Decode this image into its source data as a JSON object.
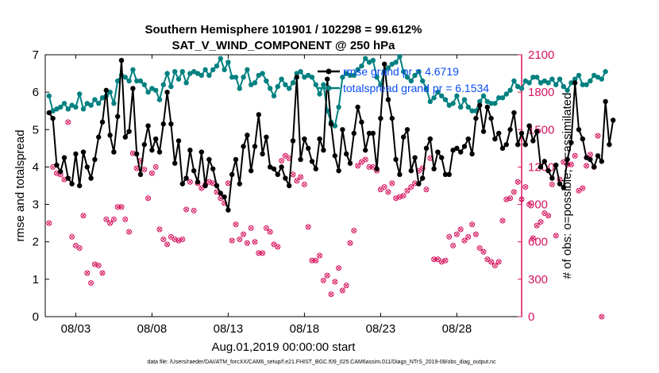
{
  "colors": {
    "rmse": "#000000",
    "spread": "#008080",
    "obs": "#d6145f",
    "legend_text": "#0a4cf5"
  },
  "chart_data": {
    "type": "line",
    "title": "Southern Hemisphere 101901 / 102298 = 99.612%",
    "subtitle": "SAT_V_WIND_COMPONENT @ 250 hPa",
    "xlabel": "Aug.01,2019 00:00:00 start",
    "ylabel": "rmse and totalspread",
    "ylabel_right": "# of obs: o=possible; ×=assimilated",
    "footer": "data file: /Users/raeder/DAI/ATM_forcXX/CAM6_setup/f.e21.FHIST_BGC.f09_025.CAM6assim.011/Diags_NTrS_2019-08/obs_diag_output.nc",
    "x_tick_labels": [
      "08/03",
      "08/08",
      "08/13",
      "08/18",
      "08/23",
      "08/28"
    ],
    "x_tick_days": [
      3,
      8,
      13,
      18,
      23,
      28
    ],
    "xlim": [
      1,
      32.25
    ],
    "ylim": [
      0,
      7
    ],
    "y_ticks": [
      "0",
      "1",
      "2",
      "3",
      "4",
      "5",
      "6",
      "7"
    ],
    "ylim_right": [
      0,
      2100
    ],
    "y_ticks_right": [
      "0",
      "300",
      "600",
      "900",
      "1200",
      "1500",
      "1800",
      "2100"
    ],
    "legend": [
      "rmse grand pr = 4.6719",
      "totalspread grand pr = 6.1534"
    ],
    "series": [
      {
        "name": "rmse",
        "values": [
          5.45,
          5.3,
          4.05,
          3.88,
          4.25,
          3.7,
          3.55,
          4.35,
          3.5,
          4.4,
          4.0,
          3.7,
          4.2,
          4.8,
          5.2,
          6.05,
          4.85,
          4.4,
          5.35,
          6.85,
          4.8,
          4.95,
          6.1,
          4.35,
          3.8,
          4.6,
          5.1,
          4.45,
          4.75,
          4.4,
          5.15,
          6.0,
          5.15,
          4.1,
          4.7,
          3.55,
          3.7,
          4.45,
          3.9,
          3.6,
          4.4,
          3.5,
          4.2,
          3.95,
          3.5,
          3.3,
          3.2,
          2.85,
          3.8,
          4.2,
          3.55,
          4.55,
          4.85,
          3.9,
          4.55,
          5.4,
          4.35,
          4.8,
          4.0,
          3.95,
          3.8,
          4.0,
          3.7,
          3.5,
          4.7,
          6.4,
          4.2,
          4.75,
          4.5,
          4.15,
          3.95,
          4.75,
          4.45,
          6.35,
          5.15,
          4.3,
          3.9,
          5.0,
          4.35,
          4.1,
          4.9,
          5.6,
          5.2,
          4.45,
          4.9,
          4.9,
          3.95,
          5.3,
          6.75,
          5.8,
          5.3,
          4.2,
          3.8,
          4.8,
          5.0,
          3.9,
          4.25,
          3.55,
          3.7,
          4.5,
          4.75,
          3.95,
          4.4,
          4.25,
          3.8,
          3.8,
          4.45,
          4.5,
          4.4,
          4.55,
          4.75,
          4.35,
          5.3,
          5.65,
          4.95,
          5.6,
          5.3,
          4.75,
          4.9,
          4.5,
          4.6,
          5.0,
          5.45,
          4.6,
          4.9,
          4.6,
          5.1,
          4.7,
          4.95,
          4.0,
          4.15,
          3.9,
          3.7,
          4.05,
          3.55,
          3.45,
          4.2,
          4.65,
          6.25,
          5.0,
          4.75,
          4.25,
          4.2,
          4.0,
          4.3,
          4.15,
          5.75,
          4.6,
          5.25
        ]
      },
      {
        "name": "totalspread",
        "values": [
          5.9,
          5.5,
          5.55,
          5.6,
          5.7,
          5.55,
          5.65,
          5.6,
          5.95,
          5.55,
          5.7,
          5.65,
          5.8,
          5.7,
          5.85,
          5.9,
          6.0,
          5.7,
          6.3,
          6.45,
          6.4,
          6.3,
          6.6,
          6.3,
          6.3,
          6.2,
          6.0,
          6.1,
          6.05,
          5.8,
          6.2,
          6.5,
          6.15,
          6.55,
          6.35,
          6.55,
          6.25,
          6.5,
          6.55,
          6.5,
          6.45,
          6.6,
          6.45,
          6.6,
          6.7,
          6.9,
          6.6,
          6.8,
          6.4,
          6.4,
          6.1,
          6.4,
          6.6,
          6.2,
          6.25,
          6.45,
          6.5,
          6.3,
          6.1,
          5.9,
          6.15,
          6.35,
          6.2,
          6.1,
          6.25,
          6.5,
          6.55,
          6.4,
          6.45,
          6.4,
          6.2,
          5.95,
          6.2,
          5.5,
          5.2,
          5.1,
          5.6,
          6.4,
          6.5,
          6.45,
          6.45,
          6.6,
          6.7,
          6.9,
          6.8,
          6.85,
          6.4,
          6.2,
          6.55,
          6.65,
          6.75,
          6.8,
          6.95,
          6.55,
          6.4,
          6.3,
          6.45,
          6.55,
          6.3,
          6.1,
          5.75,
          5.85,
          6.0,
          5.9,
          5.8,
          5.65,
          5.7,
          5.9,
          5.6,
          5.8,
          5.6,
          5.5,
          5.5,
          5.75,
          5.9,
          5.75,
          5.7,
          5.7,
          5.85,
          5.85,
          5.95,
          6.05,
          6.3,
          6.15,
          6.1,
          6.3,
          6.25,
          6.4,
          6.4,
          6.25,
          6.3,
          6.25,
          6.35,
          6.2,
          6.35,
          6.15,
          6.05,
          6.25,
          6.35,
          6.45,
          6.2,
          6.2,
          6.3,
          6.45,
          6.4,
          6.35,
          6.55
        ]
      },
      {
        "name": "obs_possible",
        "values": [
          750,
          1200,
          1150,
          1140,
          1100,
          1560,
          640,
          570,
          550,
          810,
          350,
          270,
          420,
          410,
          350,
          780,
          750,
          780,
          880,
          880,
          780,
          680,
          1310,
          1190,
          1250,
          1180,
          950,
          1150,
          1200,
          700,
          620,
          580,
          640,
          620,
          610,
          620,
          860,
          1080,
          850,
          1070,
          1030,
          1060,
          1080,
          1070,
          1000,
          950,
          910,
          1070,
          610,
          740,
          620,
          660,
          590,
          710,
          600,
          510,
          510,
          710,
          680,
          580,
          560,
          1250,
          1290,
          1270,
          1140,
          1090,
          1120,
          1060,
          720,
          450,
          450,
          490,
          290,
          330,
          180,
          280,
          390,
          210,
          250,
          590,
          690,
          1210,
          1240,
          1260,
          1200,
          1200,
          1170,
          1020,
          1040,
          1000,
          1070,
          950,
          960,
          970,
          1010,
          1040,
          1070,
          1170,
          1190,
          1020,
          1270,
          460,
          460,
          440,
          450,
          640,
          570,
          660,
          700,
          610,
          640,
          740,
          660,
          550,
          520,
          460,
          440,
          410,
          440,
          770,
          940,
          950,
          1000,
          1080,
          940,
          1040,
          900,
          630,
          730,
          760,
          830,
          810,
          1060,
          650,
          1100,
          1240,
          1220,
          1220,
          1290,
          1010,
          1030,
          1210,
          1300,
          1200,
          1450,
          0
        ]
      }
    ]
  }
}
